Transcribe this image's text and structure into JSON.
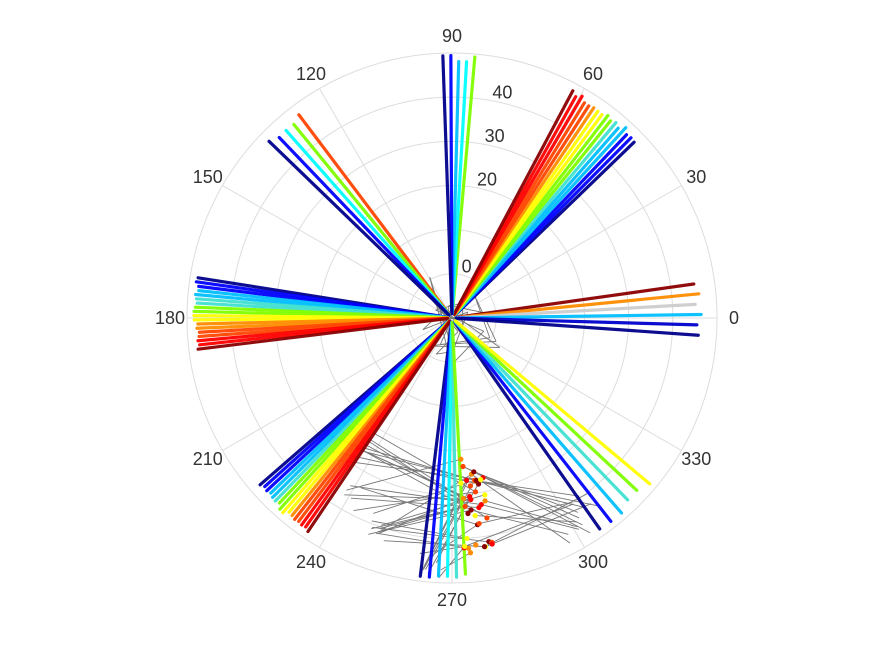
{
  "chart_data": {
    "type": "scatter",
    "subtype": "polar",
    "title": "",
    "theta_unit": "degrees",
    "rlim": [
      -10,
      50
    ],
    "r_tick_labels": [
      "0",
      "20",
      "30",
      "40"
    ],
    "theta_ticks": [
      0,
      30,
      60,
      90,
      120,
      150,
      180,
      210,
      240,
      270,
      300,
      330
    ],
    "theta_tick_labels": [
      "0",
      "30",
      "60",
      "90",
      "120",
      "150",
      "180",
      "210",
      "240",
      "270",
      "300",
      "330"
    ],
    "grid": true,
    "colormap": "jet",
    "connector_color": "#777777",
    "rays": [
      {
        "theta_center": 0,
        "fan": [
          8,
          -4
        ],
        "r_max": 46.5,
        "count": 6,
        "colors": [
          "#8b0000",
          "#ff8c00",
          "#cccccc",
          "#00bfff",
          "#0000cd",
          "#00008b"
        ]
      },
      {
        "theta_center": 53,
        "fan": [
          44,
          62
        ],
        "r_max": 48.5,
        "count": 16,
        "colors": [
          "#00008b",
          "#0000ff",
          "#00bfff",
          "#40e0d0",
          "#7fff00",
          "#ffff00",
          "#ff8c00",
          "#ff4500",
          "#ff0000",
          "#8b0000"
        ]
      },
      {
        "theta_center": 88,
        "fan": [
          85,
          92
        ],
        "r_max": 49.5,
        "count": 5,
        "colors": [
          "#7fff00",
          "#00ffff",
          "#00bfff",
          "#0000ff",
          "#00008b"
        ]
      },
      {
        "theta_center": 130,
        "fan": [
          127,
          136
        ],
        "r_max": 48,
        "count": 5,
        "colors": [
          "#ff4500",
          "#7fff00",
          "#00ffff",
          "#0000ff",
          "#00008b"
        ]
      },
      {
        "theta_center": 180,
        "fan": [
          171,
          187
        ],
        "r_max": 48.5,
        "count": 18,
        "colors": [
          "#00008b",
          "#0000ff",
          "#00bfff",
          "#40e0d0",
          "#7fff00",
          "#ffff00",
          "#ff8c00",
          "#ff4500",
          "#ff0000",
          "#8b0000"
        ]
      },
      {
        "theta_center": 227,
        "fan": [
          221,
          236
        ],
        "r_max": 48.5,
        "count": 16,
        "colors": [
          "#00008b",
          "#0000ff",
          "#00bfff",
          "#40e0d0",
          "#7fff00",
          "#ffff00",
          "#ff8c00",
          "#ff4500",
          "#ff0000",
          "#8b0000"
        ]
      },
      {
        "theta_center": 268,
        "fan": [
          263,
          273
        ],
        "r_max": 49,
        "count": 6,
        "colors": [
          "#00008b",
          "#0000ff",
          "#00bfff",
          "#00ffff",
          "#40e0d0",
          "#7fff00"
        ]
      },
      {
        "theta_center": 312,
        "fan": [
          305,
          320
        ],
        "r_max": 48.5,
        "count": 6,
        "colors": [
          "#00008b",
          "#0000ff",
          "#00bfff",
          "#40e0d0",
          "#7fff00",
          "#ffff00"
        ]
      }
    ],
    "cluster": {
      "theta_range": [
        273,
        281
      ],
      "r_range": [
        22,
        44
      ],
      "colors": [
        "#ffff00",
        "#ff8c00",
        "#ff4500",
        "#ff0000",
        "#8b0000"
      ]
    }
  }
}
